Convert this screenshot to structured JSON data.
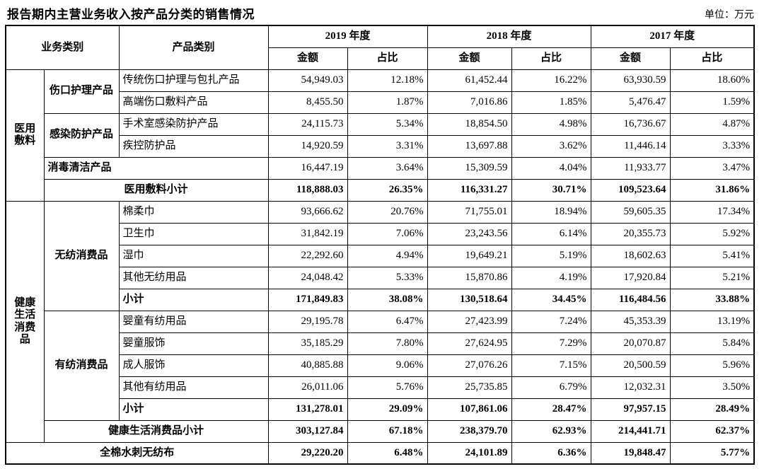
{
  "title": "报告期内主营业务收入按产品分类的销售情况",
  "unit_label": "单位：万元",
  "colors": {
    "text": "#000000",
    "border": "#000000",
    "background": "#ffffff"
  },
  "header": {
    "business_category": "业务类别",
    "product_category": "产品类别",
    "year_2019": "2019 年度",
    "year_2018": "2018 年度",
    "year_2017": "2017 年度",
    "amount": "金额",
    "ratio": "占比"
  },
  "rows": [
    {
      "biz": "医用敷料",
      "sub": "伤口护理产品",
      "product": "传统伤口护理与包扎产品",
      "a2019": "54,949.03",
      "r2019": "12.18%",
      "a2018": "61,452.44",
      "r2018": "16.22%",
      "a2017": "63,930.59",
      "r2017": "18.60%"
    },
    {
      "product": "高端伤口敷料产品",
      "a2019": "8,455.50",
      "r2019": "1.87%",
      "a2018": "7,016.86",
      "r2018": "1.85%",
      "a2017": "5,476.47",
      "r2017": "1.59%"
    },
    {
      "sub": "感染防护产品",
      "product": "手术室感染防护产品",
      "a2019": "24,115.73",
      "r2019": "5.34%",
      "a2018": "18,854.50",
      "r2018": "4.98%",
      "a2017": "16,736.67",
      "r2017": "4.87%"
    },
    {
      "product": "疾控防护品",
      "a2019": "14,920.59",
      "r2019": "3.31%",
      "a2018": "13,697.88",
      "r2018": "3.62%",
      "a2017": "11,446.14",
      "r2017": "3.33%"
    },
    {
      "label": "消毒清洁产品",
      "a2019": "16,447.19",
      "r2019": "3.64%",
      "a2018": "15,309.59",
      "r2018": "4.04%",
      "a2017": "11,933.77",
      "r2017": "3.47%"
    },
    {
      "label": "医用敷料小计",
      "a2019": "118,888.03",
      "r2019": "26.35%",
      "a2018": "116,331.27",
      "r2018": "30.71%",
      "a2017": "109,523.64",
      "r2017": "31.86%"
    },
    {
      "biz": "健康生活消费品",
      "sub": "无纺消费品",
      "product": "棉柔巾",
      "a2019": "93,666.62",
      "r2019": "20.76%",
      "a2018": "71,755.01",
      "r2018": "18.94%",
      "a2017": "59,605.35",
      "r2017": "17.34%"
    },
    {
      "product": "卫生巾",
      "a2019": "31,842.19",
      "r2019": "7.06%",
      "a2018": "23,243.56",
      "r2018": "6.14%",
      "a2017": "20,355.73",
      "r2017": "5.92%"
    },
    {
      "product": "湿巾",
      "a2019": "22,292.60",
      "r2019": "4.94%",
      "a2018": "19,649.21",
      "r2018": "5.19%",
      "a2017": "18,602.63",
      "r2017": "5.41%"
    },
    {
      "product": "其他无纺用品",
      "a2019": "24,048.42",
      "r2019": "5.33%",
      "a2018": "15,870.86",
      "r2018": "4.19%",
      "a2017": "17,920.84",
      "r2017": "5.21%"
    },
    {
      "product": "小计",
      "a2019": "171,849.83",
      "r2019": "38.08%",
      "a2018": "130,518.64",
      "r2018": "34.45%",
      "a2017": "116,484.56",
      "r2017": "33.88%"
    },
    {
      "sub": "有纺消费品",
      "product": "婴童有纺用品",
      "a2019": "29,195.78",
      "r2019": "6.47%",
      "a2018": "27,423.99",
      "r2018": "7.24%",
      "a2017": "45,353.39",
      "r2017": "13.19%"
    },
    {
      "product": "婴童服饰",
      "a2019": "35,185.29",
      "r2019": "7.80%",
      "a2018": "27,624.95",
      "r2018": "7.29%",
      "a2017": "20,070.87",
      "r2017": "5.84%"
    },
    {
      "product": "成人服饰",
      "a2019": "40,885.88",
      "r2019": "9.06%",
      "a2018": "27,076.26",
      "r2018": "7.15%",
      "a2017": "20,500.59",
      "r2017": "5.96%"
    },
    {
      "product": "其他有纺用品",
      "a2019": "26,011.06",
      "r2019": "5.76%",
      "a2018": "25,735.85",
      "r2018": "6.79%",
      "a2017": "12,032.31",
      "r2017": "3.50%"
    },
    {
      "product": "小计",
      "a2019": "131,278.01",
      "r2019": "29.09%",
      "a2018": "107,861.06",
      "r2018": "28.47%",
      "a2017": "97,957.15",
      "r2017": "28.49%"
    },
    {
      "label": "健康生活消费品小计",
      "a2019": "303,127.84",
      "r2019": "67.18%",
      "a2018": "238,379.70",
      "r2018": "62.93%",
      "a2017": "214,441.71",
      "r2017": "62.37%"
    },
    {
      "label": "全棉水刺无纺布",
      "a2019": "29,220.20",
      "r2019": "6.48%",
      "a2018": "24,101.89",
      "r2018": "6.36%",
      "a2017": "19,848.47",
      "r2017": "5.77%"
    }
  ]
}
